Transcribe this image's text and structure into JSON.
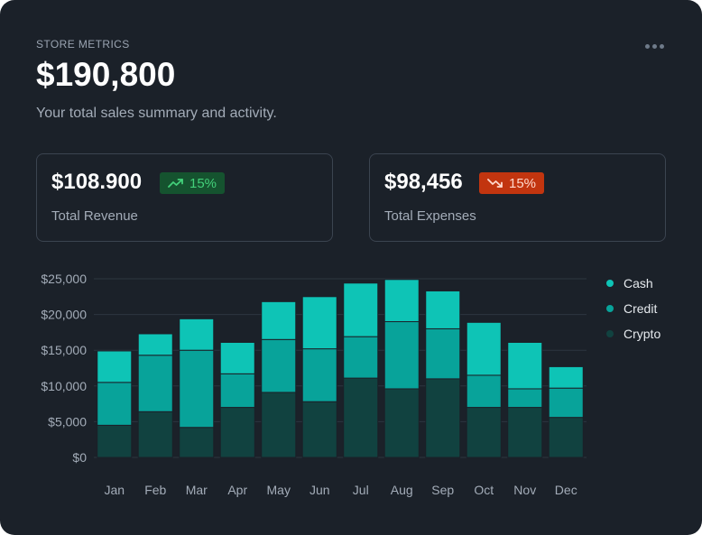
{
  "header": {
    "eyebrow": "STORE METRICS",
    "total": "$190,800",
    "subtitle": "Your total sales summary and activity."
  },
  "kpis": [
    {
      "value": "$108.900",
      "change": "15%",
      "trend": "up",
      "label": "Total Revenue",
      "badge_bg": "#15532f",
      "badge_fg": "#43d17a"
    },
    {
      "value": "$98,456",
      "change": "15%",
      "trend": "down",
      "label": "Total Expenses",
      "badge_bg": "#c2350f",
      "badge_fg": "#ffd9cc"
    }
  ],
  "icons": {
    "menu": "more-horizontal-icon",
    "trend_up": "trending-up-icon",
    "trend_down": "trending-down-icon"
  },
  "colors": {
    "background": "#1b2129",
    "cash": "#0ec4b6",
    "credit": "#08a39a",
    "crypto": "#114240"
  },
  "chart_data": {
    "type": "bar",
    "stacked": true,
    "categories": [
      "Jan",
      "Feb",
      "Mar",
      "Apr",
      "May",
      "Jun",
      "Jul",
      "Aug",
      "Sep",
      "Oct",
      "Nov",
      "Dec"
    ],
    "series": [
      {
        "name": "Crypto",
        "color": "#114240",
        "values": [
          4500,
          6400,
          4200,
          7000,
          9100,
          7800,
          11100,
          9600,
          11000,
          7000,
          7000,
          5600
        ]
      },
      {
        "name": "Credit",
        "color": "#08a39a",
        "values": [
          6000,
          7900,
          10800,
          4700,
          7400,
          7400,
          5800,
          9400,
          7000,
          4500,
          2600,
          4100
        ]
      },
      {
        "name": "Cash",
        "color": "#0ec4b6",
        "values": [
          4400,
          3000,
          4400,
          4400,
          5300,
          7300,
          7500,
          5900,
          5300,
          7400,
          6500,
          3000
        ]
      }
    ],
    "y_ticks": [
      "$0",
      "$5,000",
      "$10,000",
      "$15,000",
      "$20,000",
      "$25,000"
    ],
    "ylim": [
      0,
      25000
    ],
    "legend": [
      "Cash",
      "Credit",
      "Crypto"
    ],
    "legend_position": "right",
    "grid": true
  }
}
